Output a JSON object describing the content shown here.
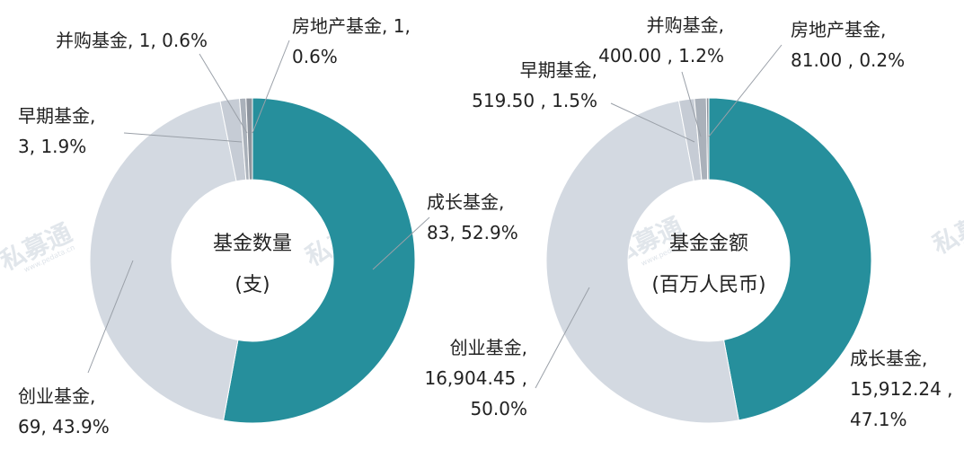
{
  "watermark": {
    "brand": "私募通",
    "site": "www.pedata.cn"
  },
  "chart_data": [
    {
      "type": "pie",
      "donut": true,
      "center_label": [
        "基金数量",
        "(支)"
      ],
      "series": [
        {
          "category": "成长基金",
          "value": 83,
          "percent": "52.9%",
          "label": [
            "成长基金,",
            "83, 52.9%"
          ],
          "color": "#268f9c"
        },
        {
          "category": "创业基金",
          "value": 69,
          "percent": "43.9%",
          "label": [
            "创业基金,",
            "69, 43.9%"
          ],
          "color": "#d3d9e1"
        },
        {
          "category": "早期基金",
          "value": 3,
          "percent": "1.9%",
          "label": [
            "早期基金,",
            "3, 1.9%"
          ],
          "color": "#c6ccd5"
        },
        {
          "category": "并购基金",
          "value": 1,
          "percent": "0.6%",
          "label": [
            "并购基金, 1, 0.6%"
          ],
          "color": "#aab1ba"
        },
        {
          "category": "房地产基金",
          "value": 1,
          "percent": "0.6%",
          "label": [
            "房地产基金, 1,",
            "0.6%"
          ],
          "color": "#8d949d"
        }
      ]
    },
    {
      "type": "pie",
      "donut": true,
      "center_label": [
        "基金金额",
        "(百万人民币)"
      ],
      "series": [
        {
          "category": "成长基金",
          "value": 15912.24,
          "percent": "47.1%",
          "label": [
            "成长基金,",
            "15,912.24 ,",
            "47.1%"
          ],
          "color": "#268f9c"
        },
        {
          "category": "创业基金",
          "value": 16904.45,
          "percent": "50.0%",
          "label": [
            "创业基金,",
            "16,904.45 ,",
            "50.0%"
          ],
          "color": "#d3d9e1"
        },
        {
          "category": "早期基金",
          "value": 519.5,
          "percent": "1.5%",
          "label": [
            "早期基金,",
            "519.50 , 1.5%"
          ],
          "color": "#c6ccd5"
        },
        {
          "category": "并购基金",
          "value": 400.0,
          "percent": "1.2%",
          "label": [
            "并购基金,",
            "400.00 , 1.2%"
          ],
          "color": "#aab1ba"
        },
        {
          "category": "房地产基金",
          "value": 81.0,
          "percent": "0.2%",
          "label": [
            "房地产基金,",
            "81.00 , 0.2%"
          ],
          "color": "#8d949d"
        }
      ]
    }
  ]
}
